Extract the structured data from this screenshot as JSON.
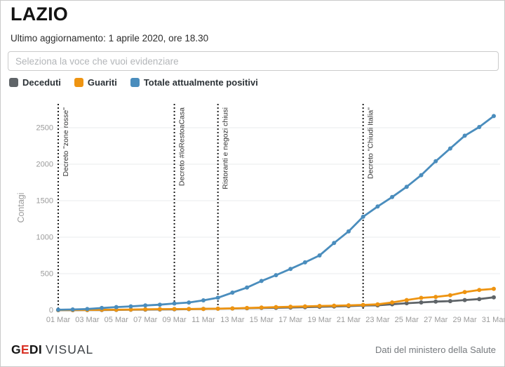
{
  "header": {
    "title": "LAZIO",
    "subtitle": "Ultimo aggiornamento: 1 aprile 2020, ore 18.30"
  },
  "search": {
    "placeholder": "Seleziona la voce che vuoi evidenziare"
  },
  "footer": {
    "brand": {
      "g": "G",
      "e": "E",
      "di": "DI",
      "visual": "VISUAL"
    },
    "source": "Dati del ministero della Salute"
  },
  "chart_data": {
    "type": "line",
    "title": "",
    "xlabel": "",
    "ylabel": "Contagi",
    "ylim": [
      0,
      2800
    ],
    "y_ticks": [
      0,
      500,
      1000,
      1500,
      2000,
      2500
    ],
    "grid": true,
    "legend_position": "top",
    "x_tick_step": 2,
    "dates": [
      "01 Mar",
      "02 Mar",
      "03 Mar",
      "04 Mar",
      "05 Mar",
      "06 Mar",
      "07 Mar",
      "08 Mar",
      "09 Mar",
      "10 Mar",
      "11 Mar",
      "12 Mar",
      "13 Mar",
      "14 Mar",
      "15 Mar",
      "16 Mar",
      "17 Mar",
      "18 Mar",
      "19 Mar",
      "20 Mar",
      "21 Mar",
      "22 Mar",
      "23 Mar",
      "24 Mar",
      "25 Mar",
      "26 Mar",
      "27 Mar",
      "28 Mar",
      "29 Mar",
      "30 Mar",
      "31 Mar"
    ],
    "series": [
      {
        "name": "Deceduti",
        "color": "#5f6468",
        "values": [
          0,
          0,
          1,
          2,
          4,
          6,
          8,
          10,
          12,
          14,
          17,
          20,
          23,
          27,
          31,
          33,
          37,
          41,
          46,
          51,
          56,
          63,
          66,
          81,
          95,
          106,
          117,
          124,
          138,
          152,
          176
        ]
      },
      {
        "name": "Guariti",
        "color": "#ee9411",
        "values": [
          3,
          3,
          3,
          6,
          6,
          9,
          12,
          14,
          15,
          16,
          17,
          20,
          24,
          30,
          36,
          42,
          47,
          52,
          58,
          62,
          66,
          72,
          80,
          106,
          138,
          168,
          182,
          204,
          248,
          276,
          292
        ]
      },
      {
        "name": "Totale attualmente positivi",
        "color": "#4a8dbd",
        "values": [
          6,
          10,
          15,
          30,
          42,
          52,
          64,
          75,
          91,
          105,
          135,
          170,
          240,
          310,
          400,
          480,
          565,
          655,
          750,
          920,
          1080,
          1280,
          1420,
          1550,
          1690,
          1850,
          2040,
          2215,
          2390,
          2510,
          2660
        ]
      }
    ],
    "annotations": [
      {
        "label": "Decreto \"zone rosse\"",
        "date": "01 Mar"
      },
      {
        "label": "Decreto #IoRestoaCasa",
        "date": "09 Mar"
      },
      {
        "label": "Ristoranti e negozi chiusi",
        "date": "12 Mar"
      },
      {
        "label": "Decreto \"Chiudi Italia\"",
        "date": "22 Mar"
      }
    ]
  }
}
